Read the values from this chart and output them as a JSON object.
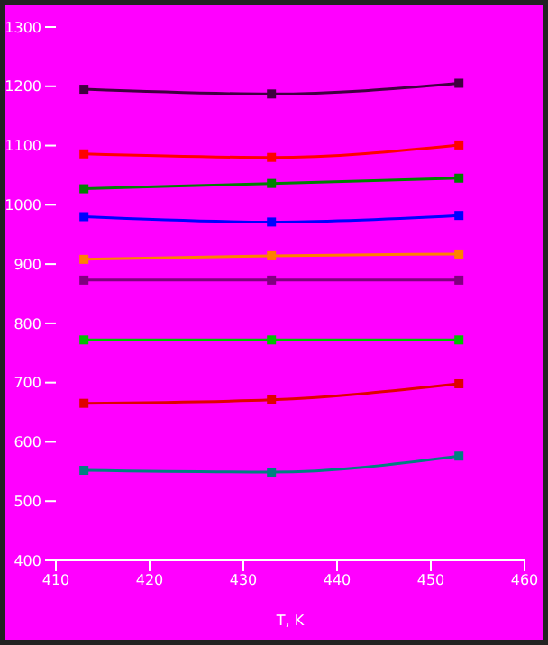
{
  "chart_data": {
    "type": "line",
    "xlabel": "T, K",
    "x": [
      413,
      433,
      453
    ],
    "series": [
      {
        "color": "#400040",
        "values": [
          1195,
          1187,
          1205
        ]
      },
      {
        "color": "#ff0000",
        "values": [
          1086,
          1080,
          1101
        ]
      },
      {
        "color": "#008000",
        "values": [
          1027,
          1036,
          1045
        ]
      },
      {
        "color": "#0000ff",
        "values": [
          980,
          971,
          982
        ]
      },
      {
        "color": "#ff8000",
        "values": [
          908,
          914,
          917
        ]
      },
      {
        "color": "#800080",
        "values": [
          873,
          873,
          873
        ]
      },
      {
        "color": "#00c000",
        "values": [
          772,
          772,
          772
        ]
      },
      {
        "color": "#e00000",
        "values": [
          665,
          671,
          698
        ]
      },
      {
        "color": "#008080",
        "values": [
          552,
          549,
          576
        ]
      }
    ],
    "xlim": [
      410,
      460
    ],
    "xticks": [
      410,
      420,
      430,
      440,
      450,
      460
    ],
    "ylim": [
      400,
      1300
    ],
    "yticks": [
      400,
      500,
      600,
      700,
      800,
      900,
      1000,
      1100,
      1200,
      1300
    ],
    "grid": false,
    "legend": false,
    "marker": "square",
    "line_style": "solid"
  }
}
